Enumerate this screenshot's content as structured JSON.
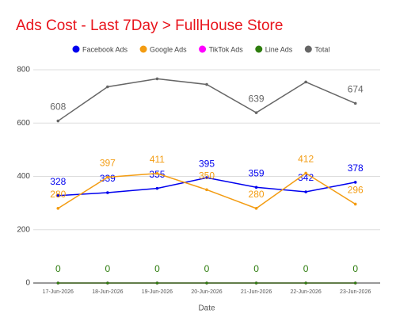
{
  "chart_data": {
    "type": "line",
    "title": "Ads Cost - Last 7Day > FullHouse Store",
    "x_label": "Date",
    "categories": [
      "17-Jun-2026",
      "18-Jun-2026",
      "19-Jun-2026",
      "20-Jun-2026",
      "21-Jun-2026",
      "22-Jun-2026",
      "23-Jun-2026"
    ],
    "series": [
      {
        "name": "Facebook Ads",
        "color": "#0000ee",
        "values": [
          328,
          339,
          355,
          395,
          359,
          342,
          378
        ],
        "labels": true
      },
      {
        "name": "Google Ads",
        "color": "#f39c12",
        "values": [
          280,
          397,
          411,
          350,
          280,
          412,
          296
        ],
        "labels": true
      },
      {
        "name": "TikTok Ads",
        "color": "#ff00ff",
        "values": [
          0,
          0,
          0,
          0,
          0,
          0,
          0
        ],
        "labels": false
      },
      {
        "name": "Line Ads",
        "color": "#2e7d0e",
        "values": [
          0,
          0,
          0,
          0,
          0,
          0,
          0
        ],
        "labels": true
      },
      {
        "name": "Total",
        "color": "#666666",
        "values": [
          608,
          736,
          766,
          745,
          639,
          754,
          674
        ],
        "labels": [
          true,
          false,
          false,
          false,
          true,
          false,
          true
        ]
      }
    ],
    "ylim": [
      0,
      800
    ],
    "yticks": [
      0,
      200,
      400,
      600,
      800
    ],
    "grid": true,
    "legend": "top"
  }
}
